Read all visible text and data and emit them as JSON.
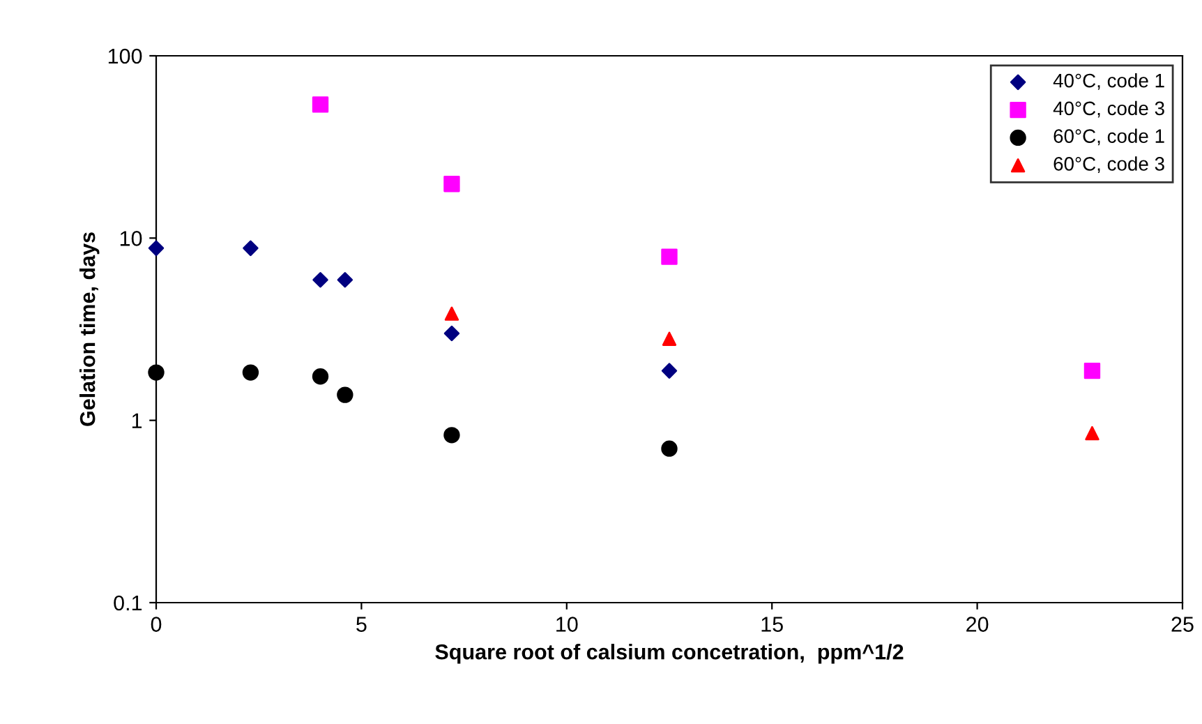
{
  "chart_data": {
    "type": "scatter",
    "xlabel": "Square root of calsium concetration,  ppm^1/2",
    "ylabel": "Gelation time, days",
    "log": "y",
    "xlim": [
      0,
      25
    ],
    "xticks": [
      0,
      5,
      10,
      15,
      20,
      25
    ],
    "ylim": [
      0.1,
      100
    ],
    "yticks": [
      0.1,
      1,
      10,
      100
    ],
    "grid": false,
    "legend": "top right",
    "series": [
      {
        "name": "40°C, code 1",
        "color": "#000080",
        "marker": "diamond",
        "x": [
          0,
          2.3,
          4.0,
          4.6,
          7.2,
          12.5
        ],
        "values": [
          8.8,
          8.8,
          5.9,
          5.9,
          3.0,
          1.87
        ]
      },
      {
        "name": "40°C, code 3",
        "color": "#ff00ff",
        "marker": "square",
        "x": [
          4.0,
          7.2,
          12.5,
          22.8
        ],
        "values": [
          54,
          19.8,
          7.9,
          1.87
        ]
      },
      {
        "name": "60°C, code 1",
        "color": "#000000",
        "marker": "circle",
        "x": [
          0,
          2.3,
          4.0,
          4.6,
          7.2,
          12.5
        ],
        "values": [
          1.83,
          1.83,
          1.74,
          1.38,
          0.83,
          0.7
        ]
      },
      {
        "name": "60°C, code 3",
        "color": "#ff0000",
        "marker": "triangle",
        "x": [
          7.2,
          12.5,
          22.8
        ],
        "values": [
          3.85,
          2.8,
          0.85
        ]
      }
    ]
  }
}
